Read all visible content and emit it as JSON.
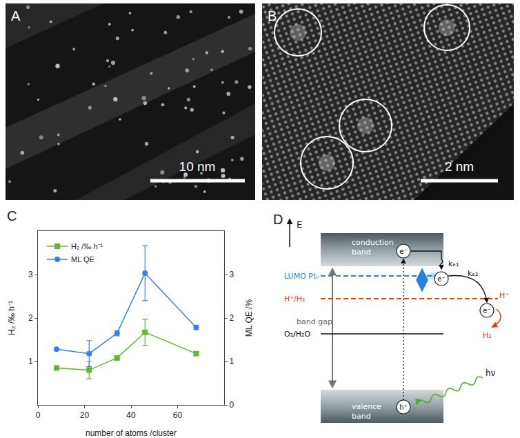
{
  "panels": {
    "A": {
      "label": "A",
      "scale_bar": "10 nm"
    },
    "B": {
      "label": "B",
      "scale_bar": "2 nm"
    },
    "C": {
      "label": "C"
    },
    "D": {
      "label": "D",
      "axis": "E",
      "conduction_band": [
        "conduction",
        "band"
      ],
      "valence_band": [
        "valence",
        "band"
      ],
      "band_gap": "band gap",
      "lumo": "LUMO Ptₙ",
      "h_h2": "H⁺/H₂",
      "o2_h2o": "O₂/H₂O",
      "electron": "e⁻",
      "hole": "h⁺",
      "k1": "kₑ₁",
      "k2": "kₑ₂",
      "proton": "H⁺",
      "hydrogen": "H₂",
      "photon": "hν"
    }
  },
  "chart_data": {
    "type": "scatter",
    "x_label": "number of atoms /cluster",
    "y_label": "H₂ /‰ h⁻¹",
    "y2_label": "ML QE /%",
    "xlim": [
      0,
      80
    ],
    "xticks": [
      0,
      20,
      40,
      60
    ],
    "ylim": [
      0,
      4
    ],
    "yticks": [
      1,
      2,
      3
    ],
    "y2lim": [
      0,
      4
    ],
    "y2ticks": [
      0,
      1,
      2,
      3
    ],
    "grid": false,
    "legend": "top-left",
    "x": [
      8,
      22,
      34,
      46,
      68
    ],
    "series": [
      {
        "name": "H₂ /‰ h⁻¹",
        "color": "#62b82f",
        "marker": "square",
        "line_style": "solid",
        "values": [
          0.85,
          0.8,
          1.08,
          1.67,
          1.18
        ],
        "errors": [
          0,
          0.2,
          0.03,
          0.3,
          0.03
        ]
      },
      {
        "name": "ML QE",
        "color": "#3b7fe6",
        "marker": "circle",
        "line_style": "solid",
        "axis": "y2",
        "values": [
          1.28,
          1.18,
          1.65,
          3.03,
          1.78
        ],
        "errors": [
          0,
          0.3,
          0.06,
          0.63,
          0.05
        ]
      }
    ]
  }
}
